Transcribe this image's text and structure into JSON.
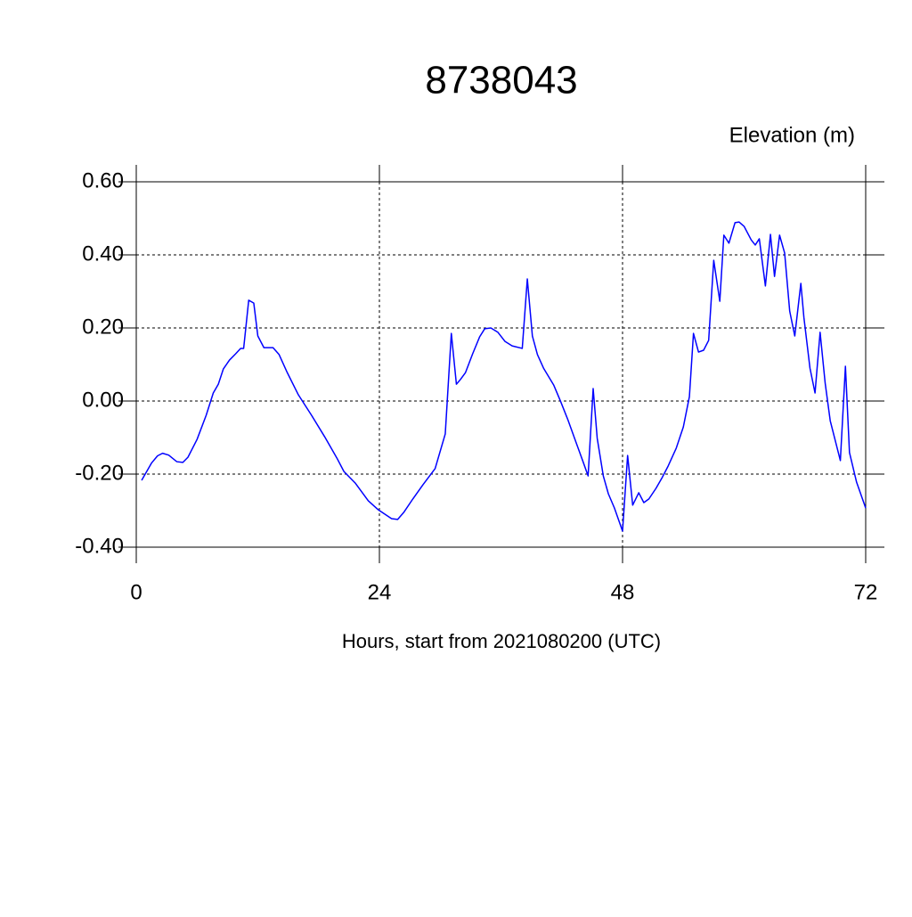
{
  "chart_data": {
    "type": "line",
    "title": "8738043",
    "y_axis_label": "Elevation (m)",
    "x_axis_label": "Hours, start from 2021080200 (UTC)",
    "xlim": [
      0,
      72
    ],
    "ylim": [
      -0.4,
      0.6
    ],
    "xticks": [
      0,
      24,
      48,
      72
    ],
    "yticks": [
      {
        "value": -0.4,
        "label": "-0.40"
      },
      {
        "value": -0.2,
        "label": "-0.20"
      },
      {
        "value": 0,
        "label": "0.00"
      },
      {
        "value": 0.2,
        "label": "0.20"
      },
      {
        "value": 0.4,
        "label": "0.40"
      },
      {
        "value": 0.6,
        "label": "0.60"
      }
    ],
    "grid": true,
    "series": [
      {
        "color": "#0000ff",
        "x": [
          0.53,
          1.5,
          2.1,
          2.6,
          3.2,
          4.0,
          4.6,
          5.1,
          6.0,
          6.9,
          7.6,
          8.1,
          8.6,
          9.2,
          9.8,
          10.3,
          10.6,
          11.1,
          11.6,
          12.0,
          12.6,
          13.5,
          14.1,
          14.9,
          16.0,
          17.3,
          18.6,
          19.8,
          20.5,
          21.6,
          22.9,
          23.9,
          25.2,
          25.8,
          26.4,
          27.3,
          28.3,
          29.5,
          30.5,
          31.1,
          31.6,
          32.0,
          32.5,
          33.2,
          33.9,
          34.4,
          35.0,
          35.7,
          36.4,
          37.1,
          38.1,
          38.6,
          39.1,
          39.6,
          40.2,
          41.2,
          41.9,
          42.6,
          43.5,
          44.1,
          44.6,
          45.1,
          45.5,
          46.1,
          46.6,
          47.2,
          48.0,
          48.5,
          49.0,
          49.6,
          50.1,
          50.6,
          51.3,
          51.9,
          52.5,
          53.3,
          54.0,
          54.6,
          55.0,
          55.5,
          56.0,
          56.5,
          57.0,
          57.6,
          58.0,
          58.5,
          59.1,
          59.5,
          60.0,
          60.7,
          61.1,
          61.5,
          62.1,
          62.6,
          63.0,
          63.5,
          64.0,
          64.5,
          65.0,
          65.6,
          65.9,
          66.5,
          67.0,
          67.5,
          68.0,
          68.5,
          69.5,
          70.0,
          70.4,
          71.1,
          72.0
        ],
        "values": [
          -0.217,
          -0.17,
          -0.15,
          -0.143,
          -0.148,
          -0.166,
          -0.168,
          -0.154,
          -0.105,
          -0.039,
          0.022,
          0.046,
          0.088,
          0.112,
          0.129,
          0.144,
          0.144,
          0.276,
          0.268,
          0.178,
          0.146,
          0.146,
          0.127,
          0.078,
          0.017,
          -0.039,
          -0.098,
          -0.156,
          -0.193,
          -0.224,
          -0.273,
          -0.298,
          -0.322,
          -0.324,
          -0.305,
          -0.268,
          -0.229,
          -0.185,
          -0.09,
          0.185,
          0.046,
          0.059,
          0.078,
          0.129,
          0.176,
          0.198,
          0.2,
          0.188,
          0.163,
          0.151,
          0.144,
          0.334,
          0.178,
          0.127,
          0.09,
          0.044,
          -0.002,
          -0.051,
          -0.12,
          -0.166,
          -0.205,
          0.034,
          -0.102,
          -0.205,
          -0.254,
          -0.293,
          -0.356,
          -0.149,
          -0.285,
          -0.251,
          -0.278,
          -0.268,
          -0.239,
          -0.21,
          -0.178,
          -0.129,
          -0.071,
          0.012,
          0.185,
          0.134,
          0.139,
          0.166,
          0.385,
          0.273,
          0.454,
          0.432,
          0.488,
          0.49,
          0.478,
          0.441,
          0.427,
          0.444,
          0.315,
          0.456,
          0.341,
          0.454,
          0.405,
          0.246,
          0.178,
          0.322,
          0.229,
          0.09,
          0.022,
          0.188,
          0.049,
          -0.054,
          -0.163,
          0.095,
          -0.141,
          -0.222,
          -0.293
        ]
      }
    ]
  }
}
